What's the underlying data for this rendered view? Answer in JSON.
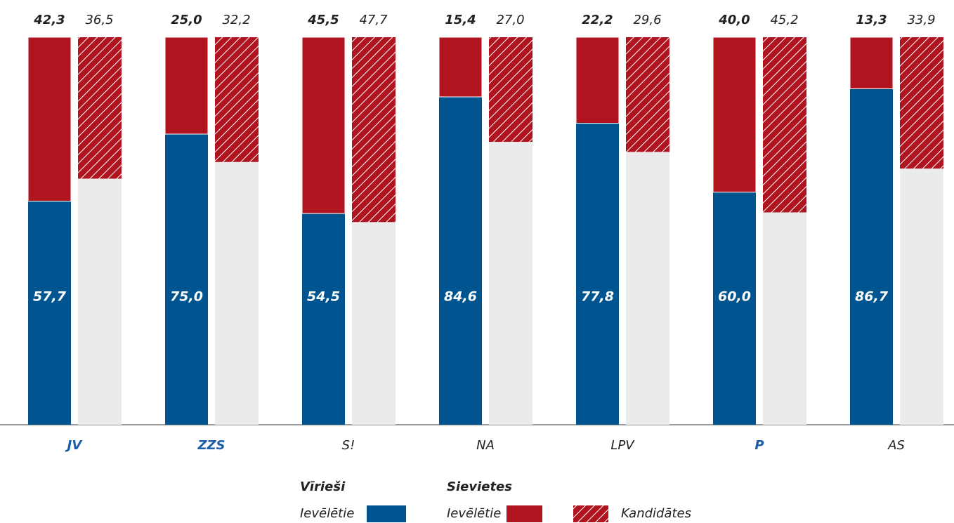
{
  "chart_data": {
    "type": "bar",
    "categories": [
      "JV",
      "ZZS",
      "S!",
      "NA",
      "LPV",
      "P",
      "AS"
    ],
    "highlight": [
      true,
      true,
      false,
      false,
      false,
      true,
      false
    ],
    "ylim": [
      0,
      100
    ],
    "series": [
      {
        "group": "Vīrieši",
        "name": "Ievēlētie",
        "color": "#00548f",
        "values": [
          57.7,
          75.0,
          54.5,
          84.6,
          77.8,
          60.0,
          86.7
        ],
        "value_labels": [
          "57,7",
          "75,0",
          "54,5",
          "84,6",
          "77,8",
          "60,0",
          "86,7"
        ]
      },
      {
        "group": "Sievietes",
        "name": "Ievēlētie",
        "color": "#b0141f",
        "values": [
          42.3,
          25.0,
          45.5,
          15.4,
          22.2,
          40.0,
          13.3
        ],
        "value_labels": [
          "42,3",
          "25,0",
          "45,5",
          "15,4",
          "22,2",
          "40,0",
          "13,3"
        ]
      },
      {
        "name": "Kandidātes",
        "color": "#b0141f",
        "hatched": true,
        "values": [
          36.5,
          32.2,
          47.7,
          27.0,
          29.6,
          45.2,
          33.9
        ],
        "value_labels": [
          "36,5",
          "32,2",
          "47,7",
          "27,0",
          "29,6",
          "45,2",
          "33,9"
        ]
      }
    ]
  }
}
